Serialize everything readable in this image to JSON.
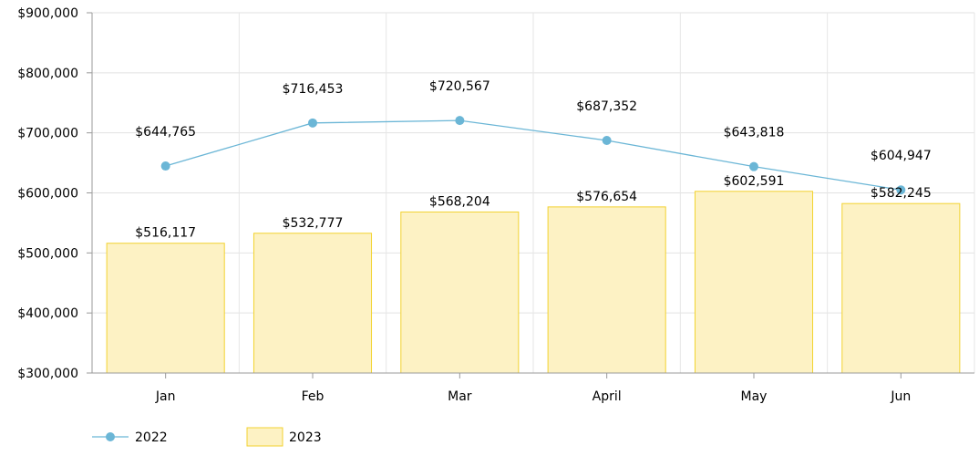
{
  "chart_data": {
    "type": "bar+line",
    "categories": [
      "Jan",
      "Feb",
      "Mar",
      "April",
      "May",
      "Jun"
    ],
    "ylim": [
      300000,
      900000
    ],
    "yticks": [
      300000,
      400000,
      500000,
      600000,
      700000,
      800000,
      900000
    ],
    "ytick_labels": [
      "$300,000",
      "$400,000",
      "$500,000",
      "$600,000",
      "$700,000",
      "$800,000",
      "$900,000"
    ],
    "grid": true,
    "legend_position": "bottom-left",
    "series": [
      {
        "name": "2022",
        "kind": "line",
        "color": "#6bb6d6",
        "values": [
          644765,
          716453,
          720567,
          687352,
          643818,
          604947
        ],
        "labels": [
          "$644,765",
          "$716,453",
          "$720,567",
          "$687,352",
          "$643,818",
          "$604,947"
        ]
      },
      {
        "name": "2023",
        "kind": "bar",
        "fill": "#fdf2c4",
        "stroke": "#f2d230",
        "values": [
          516117,
          532777,
          568204,
          576654,
          602591,
          582245
        ],
        "labels": [
          "$516,117",
          "$532,777",
          "$568,204",
          "$576,654",
          "$602,591",
          "$582,245"
        ]
      }
    ]
  }
}
